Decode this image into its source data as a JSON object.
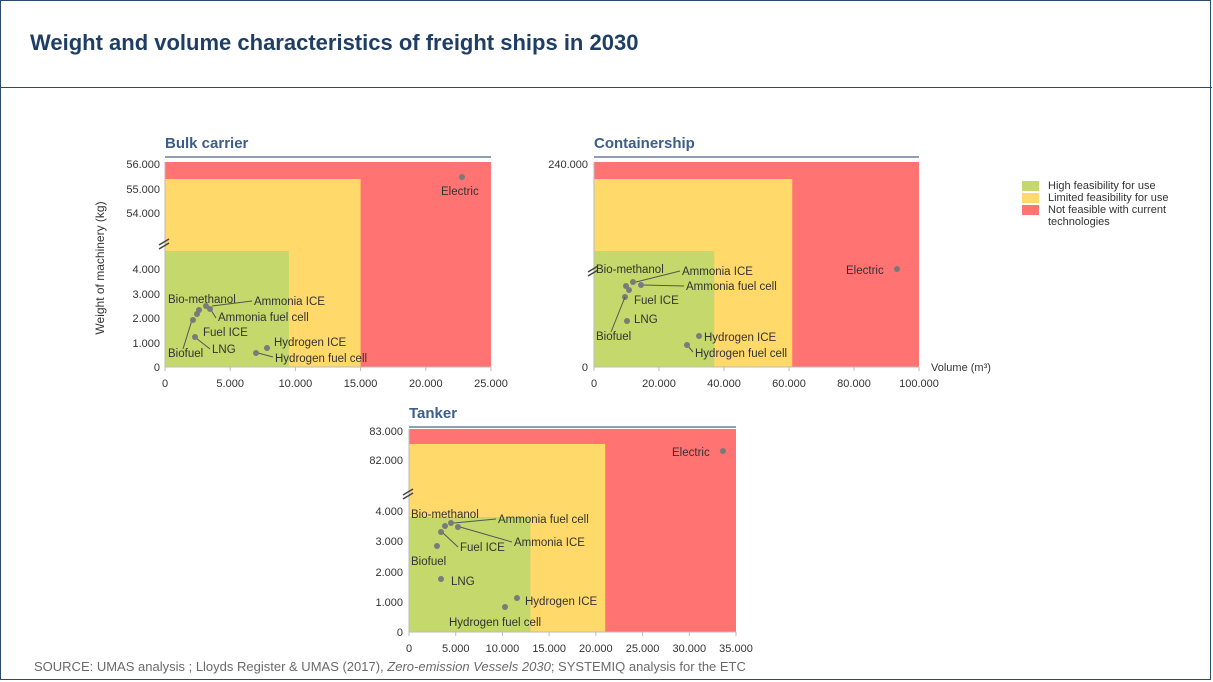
{
  "title": "Weight and volume characteristics of freight ships in 2030",
  "source": {
    "prefix": "SOURCE: UMAS analysis ; Lloyds Register & UMAS (2017), ",
    "italic": "Zero-emission Vessels 2030",
    "suffix": "; SYSTEMIQ analysis for the ETC"
  },
  "colors": {
    "high": "#c4d86b",
    "limited": "#ffd96a",
    "not_feasible": "#ff7373",
    "points": "#7a7a7a",
    "title": "#1f3e66",
    "panel_title": "#3b5e8a"
  },
  "legend": [
    {
      "label": "High feasibility for use",
      "color": "#c4d86b"
    },
    {
      "label": "Limited feasibility for use",
      "color": "#ffd96a"
    },
    {
      "label": "Not feasible with current technologies",
      "color": "#ff7373"
    }
  ],
  "chart_data": [
    {
      "type": "scatter",
      "title": "Bulk carrier",
      "xlabel": "",
      "ylabel": "Weight of machinery (kg)",
      "xlim": [
        0,
        25000
      ],
      "x_ticks": [
        "0",
        "5.000",
        "10.000",
        "15.000",
        "20.000",
        "25.000"
      ],
      "y_ticks_lower": [
        "0",
        "1.000",
        "2.000",
        "3.000",
        "4.000"
      ],
      "y_ticks_upper": [
        "54.000",
        "55.000",
        "56.000"
      ],
      "y_lower_range": [
        0,
        4000
      ],
      "y_upper_range": [
        54000,
        56000
      ],
      "zones": {
        "high": {
          "x_max": 9500,
          "y_max": 4000,
          "broken": true
        },
        "limited": {
          "x_max": 15000,
          "y_max": 55400
        },
        "not_feasible": {
          "x_max": 25000,
          "y_max": 56000
        }
      },
      "points": [
        {
          "name": "Electric",
          "x": 22600,
          "y": 55600
        },
        {
          "name": "Bio-methanol",
          "x": 2600,
          "y": 2300
        },
        {
          "name": "Ammonia ICE",
          "x": 3200,
          "y": 2400
        },
        {
          "name": "Ammonia fuel cell",
          "x": 3500,
          "y": 2300
        },
        {
          "name": "Fuel ICE",
          "x": 2400,
          "y": 2200
        },
        {
          "name": "Biofuel",
          "x": 2200,
          "y": 1900
        },
        {
          "name": "LNG",
          "x": 2300,
          "y": 1200
        },
        {
          "name": "Hydrogen ICE",
          "x": 7800,
          "y": 800
        },
        {
          "name": "Hydrogen fuel cell",
          "x": 7000,
          "y": 600
        }
      ]
    },
    {
      "type": "scatter",
      "title": "Containership",
      "xlabel": "Volume (m³)",
      "ylabel": "",
      "xlim": [
        0,
        100000
      ],
      "x_ticks": [
        "0",
        "20.000",
        "40.000",
        "60.000",
        "80.000",
        "100.000"
      ],
      "y_ticks_lower": [
        "0"
      ],
      "y_ticks_upper": [
        "240.000"
      ],
      "zones": {
        "high": {
          "x_max": 37000,
          "broken": true
        },
        "limited": {
          "x_max": 61000
        },
        "not_feasible": {
          "x_max": 100000
        }
      },
      "points": [
        {
          "name": "Electric",
          "x": 94000
        },
        {
          "name": "Bio-methanol",
          "x": 10000
        },
        {
          "name": "Ammonia ICE",
          "x": 13000
        },
        {
          "name": "Ammonia fuel cell",
          "x": 14000
        },
        {
          "name": "Fuel ICE",
          "x": 11000
        },
        {
          "name": "LNG",
          "x": 9500
        },
        {
          "name": "Biofuel",
          "x": 9000
        },
        {
          "name": "Hydrogen ICE",
          "x": 33000
        },
        {
          "name": "Hydrogen fuel cell",
          "x": 29000
        }
      ]
    },
    {
      "type": "scatter",
      "title": "Tanker",
      "xlabel": "",
      "ylabel": "",
      "xlim": [
        0,
        35000
      ],
      "x_ticks": [
        "0",
        "5.000",
        "10.000",
        "15.000",
        "20.000",
        "25.000",
        "30.000",
        "35.000"
      ],
      "y_ticks_lower": [
        "0",
        "1.000",
        "2.000",
        "3.000",
        "4.000"
      ],
      "y_ticks_upper": [
        "82.000",
        "83.000"
      ],
      "y_lower_range": [
        0,
        4000
      ],
      "y_upper_range": [
        81500,
        83000
      ],
      "zones": {
        "high": {
          "x_max": 13000,
          "y_max": 3900,
          "broken": true
        },
        "limited": {
          "x_max": 21000,
          "y_max": 82700
        },
        "not_feasible": {
          "x_max": 35000,
          "y_max": 83000
        }
      },
      "points": [
        {
          "name": "Electric",
          "x": 33500,
          "y": 82450
        },
        {
          "name": "Bio-methanol",
          "x": 3800,
          "y": 3450
        },
        {
          "name": "Ammonia fuel cell",
          "x": 4500,
          "y": 3500
        },
        {
          "name": "Ammonia ICE",
          "x": 5000,
          "y": 3450
        },
        {
          "name": "Fuel ICE",
          "x": 3400,
          "y": 3300
        },
        {
          "name": "Biofuel",
          "x": 3000,
          "y": 2850
        },
        {
          "name": "LNG",
          "x": 3400,
          "y": 1750
        },
        {
          "name": "Hydrogen ICE",
          "x": 11500,
          "y": 1100
        },
        {
          "name": "Hydrogen fuel cell",
          "x": 10500,
          "y": 850
        }
      ]
    }
  ]
}
